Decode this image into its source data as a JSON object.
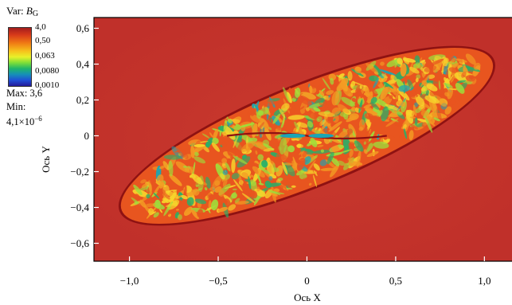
{
  "chart_data": {
    "type": "heatmap",
    "title": "",
    "xlabel": "Ось X",
    "ylabel": "Ось Y",
    "xlim": [
      -1.2,
      1.16
    ],
    "ylim": [
      -0.7,
      0.66
    ],
    "x_ticks": [
      {
        "value": -1.0,
        "label": "−1,0"
      },
      {
        "value": -0.5,
        "label": "−0,5"
      },
      {
        "value": 0.0,
        "label": "0"
      },
      {
        "value": 0.5,
        "label": "0,5"
      },
      {
        "value": 1.0,
        "label": "1,0"
      }
    ],
    "y_ticks": [
      {
        "value": 0.6,
        "label": "0,6"
      },
      {
        "value": 0.4,
        "label": "0,4"
      },
      {
        "value": 0.2,
        "label": "0,2"
      },
      {
        "value": 0.0,
        "label": "0"
      },
      {
        "value": -0.2,
        "label": "−0,2"
      },
      {
        "value": -0.4,
        "label": "−0,4"
      },
      {
        "value": -0.6,
        "label": "−0,6"
      }
    ],
    "variable": {
      "prefix": "Var: ",
      "symbol": "B",
      "subscript": "G"
    },
    "colorbar": {
      "scale": "log",
      "ticks": [
        "4,0",
        "0,50",
        "0,063",
        "0,0080",
        "0,0010"
      ],
      "colors": [
        "#a31d1d",
        "#f07a14",
        "#e9f02a",
        "#1fb66a",
        "#1690b8",
        "#241a9a"
      ]
    },
    "max_text": "Max: 3,6",
    "min_label": "Min:",
    "min_value": {
      "mantissa": "4,1",
      "times": "×",
      "base": "10",
      "exponent": "−6"
    },
    "background_color": "#c7362b",
    "region": {
      "shape": "tilted ellipse",
      "center": [
        0.0,
        0.0
      ],
      "x_extent": [
        -1.12,
        1.13
      ],
      "tilt_deg": 22,
      "rim_color": "#8f1212",
      "interior_colors": [
        "#e8551f",
        "#f39a23",
        "#f7d42b",
        "#9fdc3a",
        "#25b06a",
        "#1aa6b5"
      ]
    }
  }
}
